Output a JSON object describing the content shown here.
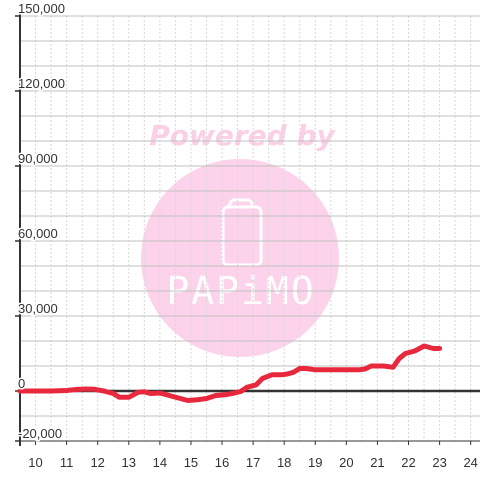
{
  "chart_data": {
    "type": "line",
    "x_range": [
      9.5,
      24.3
    ],
    "ylim": [
      -20000,
      150000
    ],
    "x_ticks": [
      10,
      11,
      12,
      13,
      14,
      15,
      16,
      17,
      18,
      19,
      20,
      21,
      22,
      23,
      24
    ],
    "y_ticks": [
      -20000,
      0,
      30000,
      60000,
      90000,
      120000,
      150000
    ],
    "y_tick_labels": [
      "-20,000",
      "0",
      "30,000",
      "60,000",
      "90,000",
      "120,000",
      "150,000"
    ],
    "x_minor_step": 0.5,
    "y_minor_step": 10000,
    "grid": true,
    "series": [
      {
        "color": "#e8283c",
        "x": [
          9.5,
          10.5,
          11.0,
          11.3,
          11.6,
          11.9,
          12.2,
          12.5,
          12.7,
          13.0,
          13.3,
          13.5,
          13.7,
          14.0,
          14.3,
          14.6,
          14.9,
          15.2,
          15.5,
          15.8,
          16.1,
          16.4,
          16.6,
          16.8,
          17.1,
          17.3,
          17.6,
          17.9,
          18.1,
          18.3,
          18.5,
          18.7,
          19.0,
          19.5,
          20.0,
          20.4,
          20.6,
          20.8,
          21.0,
          21.2,
          21.5,
          21.7,
          21.9,
          22.2,
          22.5,
          22.8,
          23.0
        ],
        "y": [
          0,
          0,
          200,
          600,
          800,
          700,
          0,
          -1000,
          -2500,
          -2500,
          -500,
          -300,
          -1000,
          -800,
          -1800,
          -2800,
          -3800,
          -3500,
          -3000,
          -1800,
          -1500,
          -800,
          -200,
          1500,
          2500,
          5000,
          6500,
          6500,
          6800,
          7500,
          9000,
          9000,
          8500,
          8500,
          8500,
          8500,
          8800,
          10000,
          10000,
          10000,
          9500,
          13000,
          15000,
          16000,
          18000,
          17000,
          17000
        ]
      }
    ]
  },
  "watermark": {
    "text": "Powered by",
    "brand": "PAPiMO",
    "text_color": "#fbcfe6",
    "circle_color": "#fcd3ea",
    "icon": "mobile-phone-icon"
  },
  "colors": {
    "grid_minor": "#d8d8d8",
    "grid_major": "#c0c0c0",
    "axis": "#333333",
    "zero_line": "#333333",
    "background": "#ffffff"
  }
}
